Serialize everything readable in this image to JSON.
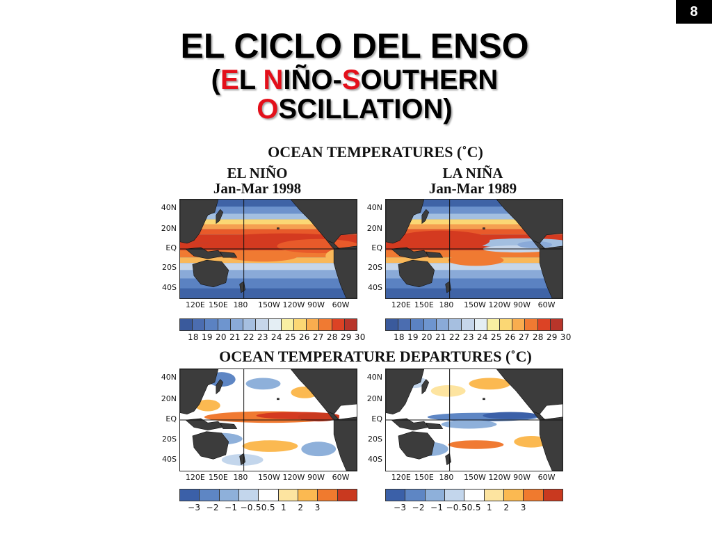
{
  "slide_number": "8",
  "title": {
    "line1": "EL CICLO DEL ENSO",
    "line2_parts": [
      "(",
      "E",
      "L ",
      "N",
      "IÑO-",
      "S",
      "OUTHERN"
    ],
    "line3_parts": [
      "O",
      "SCILLATION)"
    ]
  },
  "colors": {
    "accent_red": "#e3101b"
  },
  "sections": {
    "temperatures": "OCEAN TEMPERATURES (˚C)",
    "departures": "OCEAN TEMPERATURE DEPARTURES (˚C)"
  },
  "panels": {
    "el_nino": {
      "name": "EL NIÑO",
      "period": "Jan-Mar 1998"
    },
    "la_nina": {
      "name": "LA NIÑA",
      "period": "Jan-Mar 1989"
    }
  },
  "lat_labels": [
    "40N",
    "20N",
    "EQ",
    "20S",
    "40S"
  ],
  "lon_labels": [
    "120E",
    "150E",
    "180",
    "150W",
    "120W",
    "90W",
    "60W"
  ],
  "colorbars": {
    "temperature": {
      "labels": "18 19 20 21 22 23 24 25 26 27 28 29 30",
      "colors": [
        "#3a5a9c",
        "#4b6db0",
        "#5b82c2",
        "#6e95cf",
        "#8aaad8",
        "#a6bfe0",
        "#c6d6ea",
        "#e4eef4",
        "#f8efa2",
        "#fbd774",
        "#f9ad4f",
        "#f07a32",
        "#dc4325",
        "#b8352a"
      ]
    },
    "departure": {
      "labels": "−3  −2  −1 −0.50.5  1    2    3",
      "colors": [
        "#3b60a8",
        "#5e86c4",
        "#8eb0da",
        "#c3d6ec",
        "#ffffff",
        "#fde4a0",
        "#fbb951",
        "#f07a2e",
        "#c9391f"
      ]
    }
  }
}
